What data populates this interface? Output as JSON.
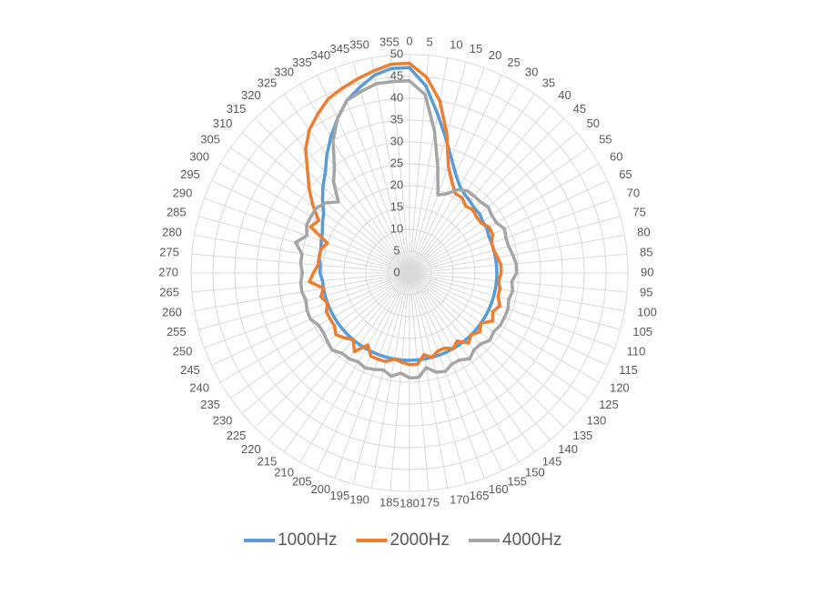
{
  "chart_data": {
    "type": "radar",
    "categories": [
      "0",
      "5",
      "10",
      "15",
      "20",
      "25",
      "30",
      "35",
      "40",
      "45",
      "50",
      "55",
      "60",
      "65",
      "70",
      "75",
      "80",
      "85",
      "90",
      "95",
      "100",
      "105",
      "110",
      "115",
      "120",
      "125",
      "130",
      "135",
      "140",
      "145",
      "150",
      "155",
      "160",
      "165",
      "170",
      "175",
      "180",
      "185",
      "190",
      "195",
      "200",
      "205",
      "210",
      "215",
      "220",
      "225",
      "230",
      "235",
      "240",
      "245",
      "250",
      "255",
      "260",
      "265",
      "270",
      "275",
      "280",
      "285",
      "290",
      "295",
      "300",
      "305",
      "310",
      "315",
      "320",
      "325",
      "330",
      "335",
      "340",
      "345",
      "350",
      "355"
    ],
    "ylim": [
      0,
      50
    ],
    "yticks": [
      0,
      5,
      10,
      15,
      20,
      25,
      30,
      35,
      40,
      45,
      50
    ],
    "grid": true,
    "legend": "bottom",
    "series": [
      {
        "name": "1000Hz",
        "color": "#5b9bd5",
        "values": [
          47,
          43,
          37,
          32,
          28,
          25,
          23,
          22,
          21.5,
          21,
          21,
          20.5,
          20.5,
          20,
          20,
          20,
          20,
          20,
          20,
          20,
          20,
          20,
          20,
          20,
          20,
          20,
          20,
          20,
          20,
          20,
          20,
          20,
          20,
          20,
          20,
          20,
          20,
          20,
          20,
          20,
          20,
          20,
          20,
          20,
          20,
          20,
          20,
          20,
          20,
          20,
          20,
          20,
          20,
          20,
          20.5,
          20.5,
          21,
          21,
          21.5,
          22,
          23,
          24,
          26,
          28,
          30,
          33,
          36,
          39,
          42,
          44,
          46,
          47
        ]
      },
      {
        "name": "2000Hz",
        "color": "#ed7d31",
        "values": [
          48,
          45,
          40,
          33,
          26,
          23,
          21,
          21,
          20,
          20.5,
          20,
          20,
          21,
          21,
          20,
          20,
          20.5,
          21,
          21,
          20.5,
          21,
          21,
          22,
          21,
          22,
          20,
          21,
          20,
          21,
          19,
          20,
          19,
          19,
          20,
          19,
          21,
          21,
          20.5,
          20,
          21,
          21,
          21,
          19,
          22,
          20,
          21,
          22,
          21,
          21,
          21,
          20,
          21,
          20,
          23,
          22,
          21,
          21,
          21,
          20,
          25,
          24,
          27,
          30,
          33,
          37,
          40,
          42,
          44,
          45,
          46,
          47,
          48
        ]
      },
      {
        "name": "4000Hz",
        "color": "#a5a5a5",
        "values": [
          44,
          41,
          33,
          25,
          19,
          20,
          22,
          23,
          23,
          23,
          23.5,
          23,
          23,
          24,
          23.5,
          23.5,
          24,
          24.5,
          24.5,
          23.5,
          24,
          23.5,
          24,
          24,
          24,
          23.5,
          24,
          23,
          23,
          24,
          23,
          23,
          24,
          23.5,
          22,
          24,
          24,
          23,
          24,
          23,
          23.5,
          24,
          23.5,
          24,
          24,
          25,
          24.5,
          24,
          24,
          25,
          25,
          24.5,
          25,
          25,
          24.5,
          25,
          25,
          27,
          25,
          26,
          26,
          26,
          25,
          23,
          27,
          30,
          35,
          39,
          42,
          43,
          44,
          44
        ]
      }
    ]
  }
}
